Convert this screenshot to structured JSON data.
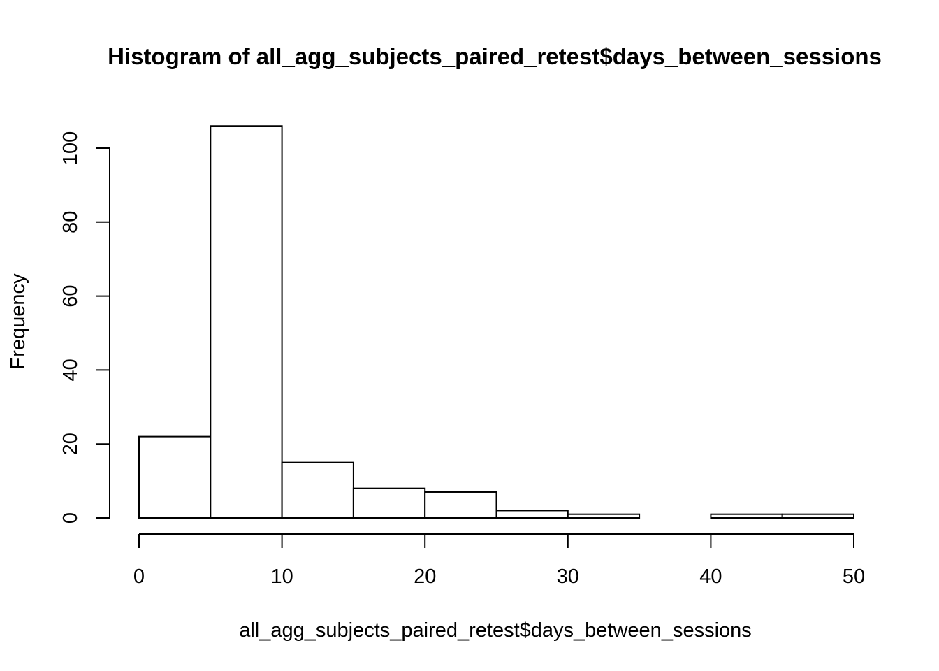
{
  "chart_data": {
    "type": "bar",
    "title": "Histogram of all_agg_subjects_paired_retest$days_between_sessions",
    "xlabel": "all_agg_subjects_paired_retest$days_between_sessions",
    "ylabel": "Frequency",
    "bins": [
      {
        "from": 0,
        "to": 5,
        "count": 22
      },
      {
        "from": 5,
        "to": 10,
        "count": 106
      },
      {
        "from": 10,
        "to": 15,
        "count": 15
      },
      {
        "from": 15,
        "to": 20,
        "count": 8
      },
      {
        "from": 20,
        "to": 25,
        "count": 7
      },
      {
        "from": 25,
        "to": 30,
        "count": 2
      },
      {
        "from": 30,
        "to": 35,
        "count": 1
      },
      {
        "from": 35,
        "to": 40,
        "count": 0
      },
      {
        "from": 40,
        "to": 45,
        "count": 1
      },
      {
        "from": 45,
        "to": 50,
        "count": 1
      }
    ],
    "xlim": [
      0,
      50
    ],
    "ylim": [
      0,
      106
    ],
    "x_ticks": [
      0,
      10,
      20,
      30,
      40,
      50
    ],
    "y_ticks": [
      0,
      20,
      40,
      60,
      80,
      100
    ],
    "grid": false,
    "legend": "none",
    "fill_color": "#ffffff",
    "stroke_color": "#000000"
  }
}
